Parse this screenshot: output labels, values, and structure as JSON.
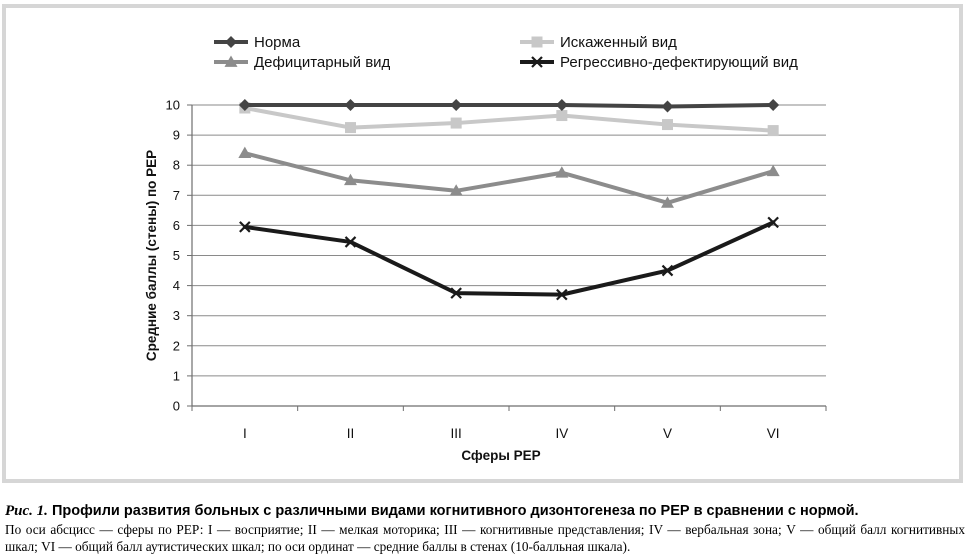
{
  "chart_data": {
    "type": "line",
    "categories": [
      "I",
      "II",
      "III",
      "IV",
      "V",
      "VI"
    ],
    "ylim": [
      0,
      10
    ],
    "yticks": [
      0,
      1,
      2,
      3,
      4,
      5,
      6,
      7,
      8,
      9,
      10
    ],
    "xlabel": "Сферы РЕР",
    "ylabel": "Средние баллы (стены) по РЕР",
    "grid": "horizontal",
    "legend_position": "top",
    "series": [
      {
        "name": "Норма",
        "values": [
          10.0,
          10.0,
          10.0,
          10.0,
          9.95,
          10.0
        ],
        "color": "#444444",
        "marker": "diamond"
      },
      {
        "name": "Искаженный вид",
        "values": [
          9.9,
          9.25,
          9.4,
          9.65,
          9.35,
          9.15
        ],
        "color": "#c8c8c8",
        "marker": "square"
      },
      {
        "name": "Дефицитарный вид",
        "values": [
          8.4,
          7.5,
          7.15,
          7.75,
          6.75,
          7.8
        ],
        "color": "#8c8c8c",
        "marker": "triangle"
      },
      {
        "name": "Регрессивно-дефектирующий вид",
        "values": [
          5.95,
          5.45,
          3.75,
          3.7,
          4.5,
          6.1
        ],
        "color": "#1a1a1a",
        "marker": "x"
      }
    ]
  },
  "caption": {
    "figure_label": "Рис. 1.",
    "title": "Профили развития больных с различными видами когнитивного дизонтогенеза по РЕР в сравнении с нормой.",
    "note": "По оси абсцисс — сферы по РЕР: I — восприятие; II — мелкая моторика; III — когнитивные представления; IV — вербальная зона; V — общий балл когнитивных шкал; VI — общий балл аутистических шкал; по оси ординат — средние баллы в стенах (10-балльная шкала)."
  }
}
